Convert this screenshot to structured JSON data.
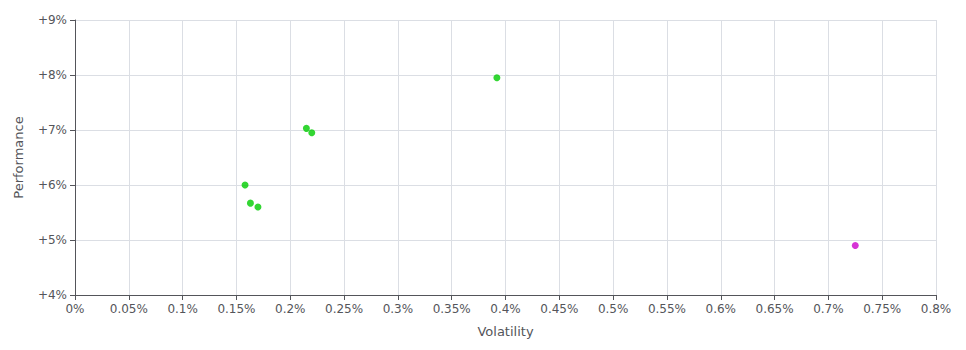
{
  "chart_data": {
    "type": "scatter",
    "x_label": "Volatility",
    "y_label": "Performance",
    "series": [
      {
        "color": "#00cc00",
        "values": [
          [
            0.00392,
            0.0795
          ],
          [
            0.00215,
            0.0703
          ],
          [
            0.0022,
            0.0695
          ],
          [
            0.00158,
            0.06
          ],
          [
            0.00163,
            0.0567
          ],
          [
            0.0017,
            0.056
          ]
        ]
      },
      {
        "color": "#cc00cc",
        "values": [
          [
            0.00725,
            0.049
          ]
        ]
      }
    ],
    "xlim": [
      0.0,
      0.008
    ],
    "ylim": [
      0.04,
      0.09
    ],
    "xticks": [
      {
        "value": 0.0,
        "label": "0%"
      },
      {
        "value": 0.0005,
        "label": "0.05%"
      },
      {
        "value": 0.001,
        "label": "0.1%"
      },
      {
        "value": 0.0015,
        "label": "0.15%"
      },
      {
        "value": 0.002,
        "label": "0.2%"
      },
      {
        "value": 0.0025,
        "label": "0.25%"
      },
      {
        "value": 0.003,
        "label": "0.3%"
      },
      {
        "value": 0.0035,
        "label": "0.35%"
      },
      {
        "value": 0.004,
        "label": "0.4%"
      },
      {
        "value": 0.0045,
        "label": "0.45%"
      },
      {
        "value": 0.005,
        "label": "0.5%"
      },
      {
        "value": 0.0055,
        "label": "0.55%"
      },
      {
        "value": 0.006,
        "label": "0.6%"
      },
      {
        "value": 0.0065,
        "label": "0.65%"
      },
      {
        "value": 0.007,
        "label": "0.7%"
      },
      {
        "value": 0.0075,
        "label": "0.75%"
      },
      {
        "value": 0.008,
        "label": "0.8%"
      }
    ],
    "yticks": [
      {
        "value": 0.04,
        "label": "+4%"
      },
      {
        "value": 0.05,
        "label": "+5%"
      },
      {
        "value": 0.06,
        "label": "+6%"
      },
      {
        "value": 0.07,
        "label": "+7%"
      },
      {
        "value": 0.08,
        "label": "+8%"
      },
      {
        "value": 0.09,
        "label": "+9%"
      }
    ],
    "grid": true
  }
}
